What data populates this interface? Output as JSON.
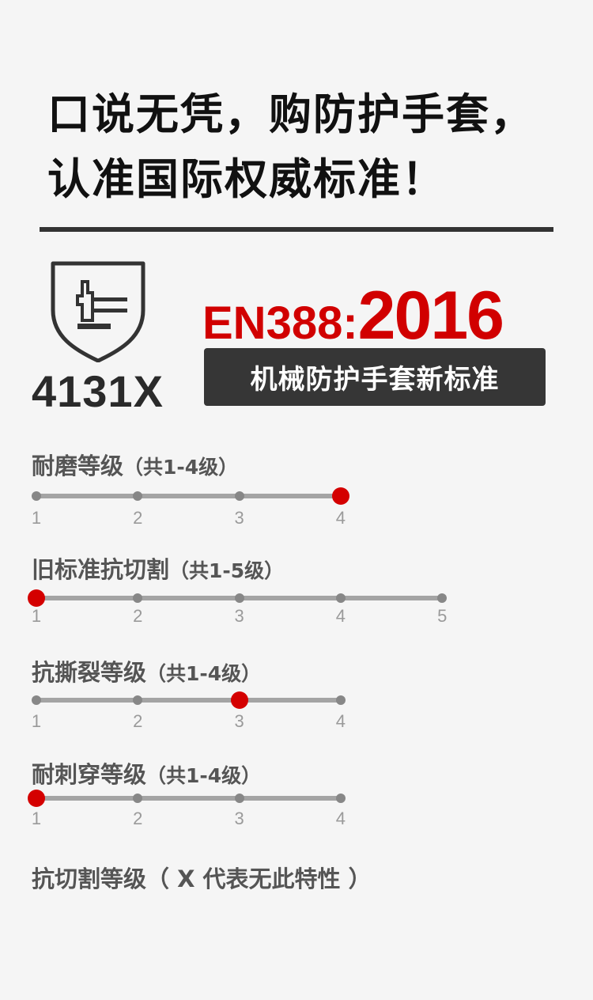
{
  "headline": {
    "line1": "口说无凭，购防护手套，",
    "line2": "认准国际权威标准！"
  },
  "badge": {
    "icon": "shield-hammer-glove-icon",
    "code": "4131X"
  },
  "standard": {
    "prefix": "EN388:",
    "year": "2016",
    "subtitle": "机械防护手套新标准"
  },
  "colors": {
    "accent": "#d40000",
    "track": "#a4a4a4",
    "text": "#555555"
  },
  "ratings": [
    {
      "title": "耐磨等级",
      "range": "（共1-4级）",
      "max": 4,
      "value": 4,
      "ticks": [
        "1",
        "2",
        "3",
        "4"
      ]
    },
    {
      "title": "旧标准抗切割",
      "range": "（共1-5级）",
      "max": 5,
      "value": 1,
      "ticks": [
        "1",
        "2",
        "3",
        "4",
        "5"
      ]
    },
    {
      "title": "抗撕裂等级",
      "range": "（共1-4级）",
      "max": 4,
      "value": 3,
      "ticks": [
        "1",
        "2",
        "3",
        "4"
      ]
    },
    {
      "title": "耐刺穿等级",
      "range": "（共1-4级）",
      "max": 4,
      "value": 1,
      "ticks": [
        "1",
        "2",
        "3",
        "4"
      ]
    }
  ],
  "final_note": "抗切割等级（ X 代表无此特性 ）"
}
